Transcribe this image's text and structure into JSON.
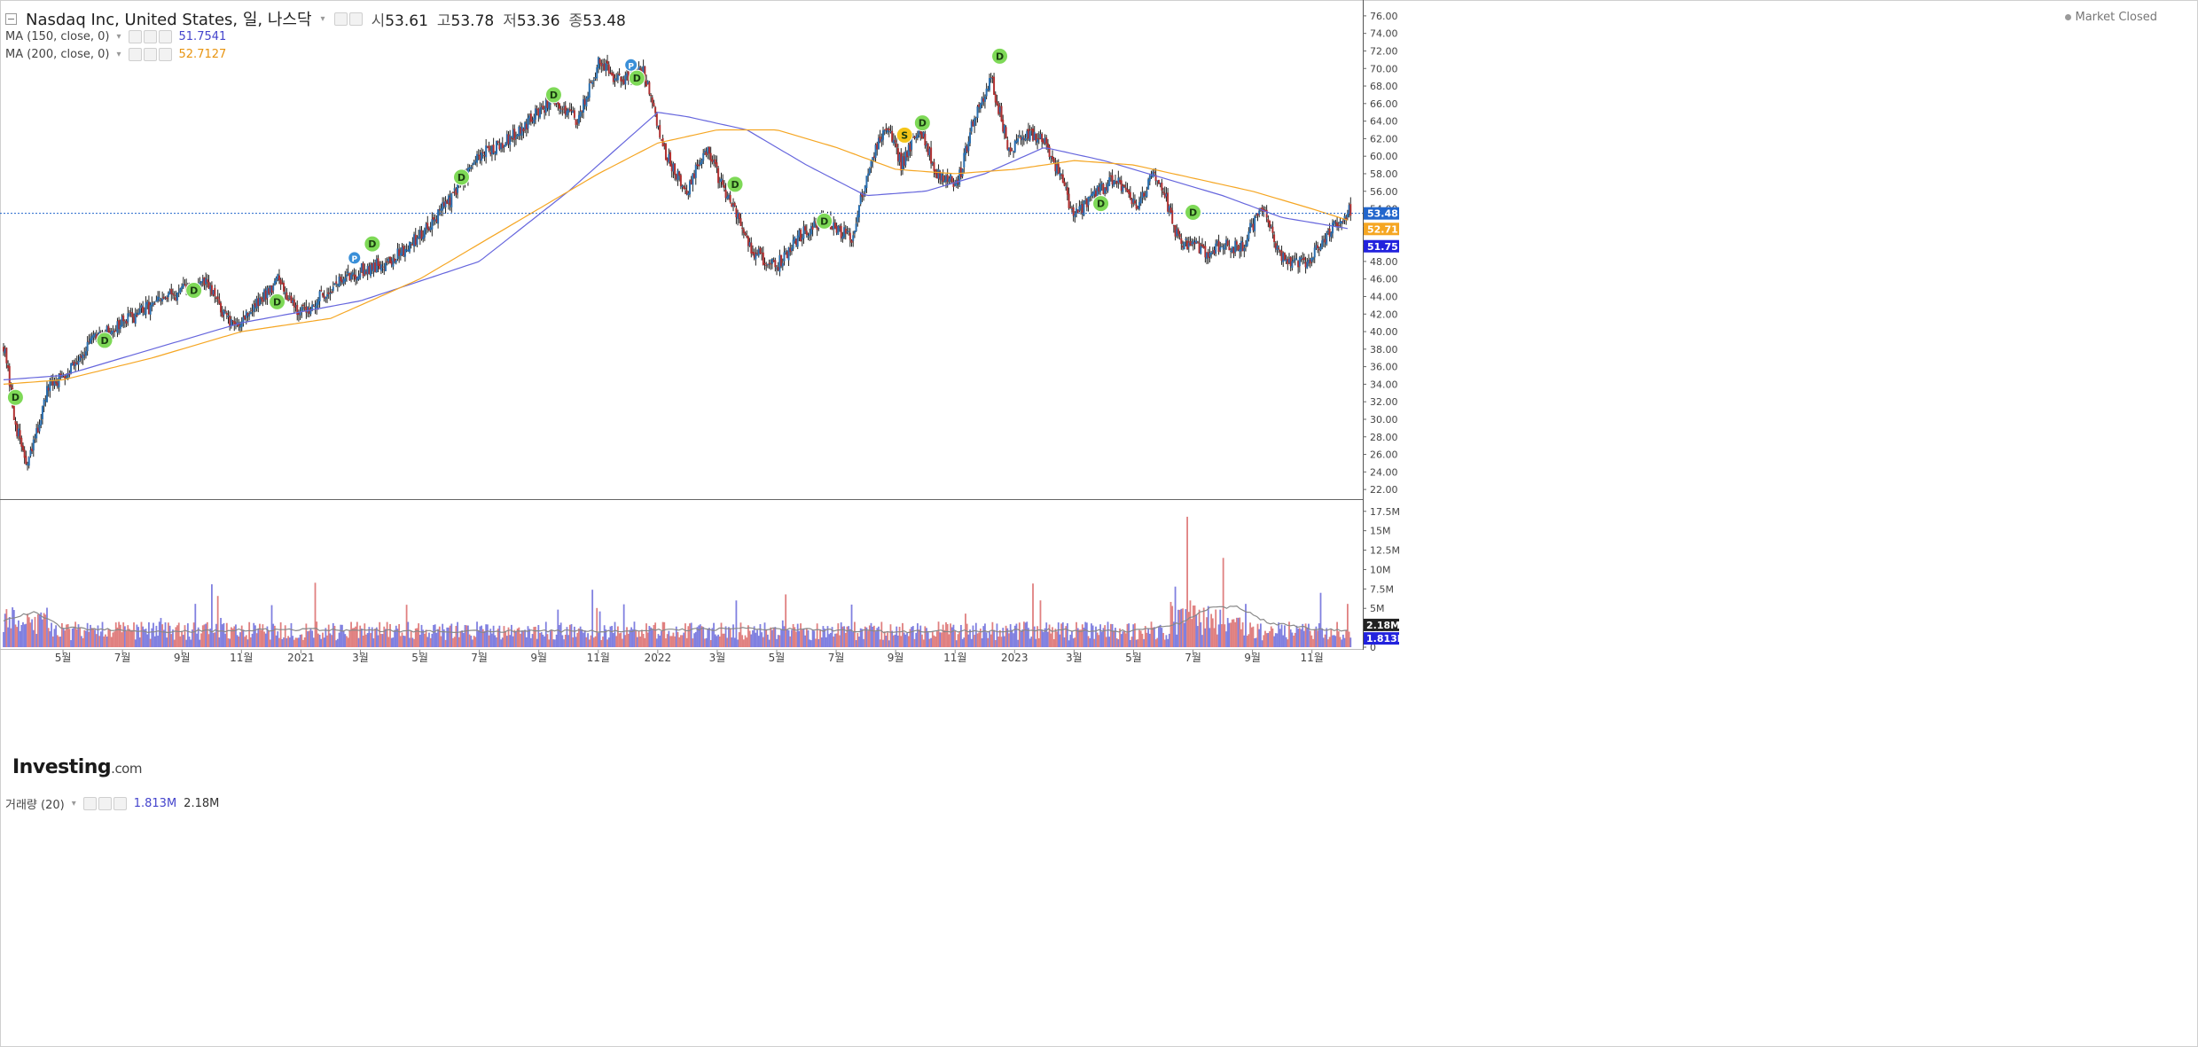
{
  "header": {
    "collapse_icon": "minus-square-icon",
    "title": "Nasdaq Inc, United States, 일, 나스닥",
    "dropdown_icon": "chevron-down-icon",
    "open_label": "시",
    "open_value": "53.61",
    "high_label": "고",
    "high_value": "53.78",
    "low_label": "저",
    "low_value": "53.36",
    "close_label": "종",
    "close_value": "53.48"
  },
  "market_status": "Market Closed",
  "indicators": {
    "ma150": {
      "label": "MA (150, close, 0)",
      "value": "51.7541",
      "color": "#6666dd"
    },
    "ma200": {
      "label": "MA (200, close, 0)",
      "value": "52.7127",
      "color": "#f5a623"
    }
  },
  "volume_panel": {
    "label": "거래량 (20)",
    "value1": "1.813M",
    "value2": "2.18M"
  },
  "logo": {
    "main": "Investing",
    "suffix": ".com"
  },
  "colors": {
    "up": "#2a6fb0",
    "down": "#b03030",
    "vol_up": "#8080e0",
    "vol_down": "#e08080",
    "ma150": "#6666dd",
    "ma200": "#f5a623",
    "last_price": "#2266cc"
  },
  "chart_data": {
    "type": "candlestick",
    "title": "Nasdaq Inc, United States, 일, 나스닥",
    "ylim": [
      21.0,
      77.0
    ],
    "y_ticks": [
      "22.00",
      "24.00",
      "26.00",
      "28.00",
      "30.00",
      "32.00",
      "34.00",
      "36.00",
      "38.00",
      "40.00",
      "42.00",
      "44.00",
      "46.00",
      "48.00",
      "50.00",
      "52.00",
      "54.00",
      "56.00",
      "58.00",
      "60.00",
      "62.00",
      "64.00",
      "66.00",
      "68.00",
      "70.00",
      "72.00",
      "74.00",
      "76.00"
    ],
    "x_labels": [
      "5월",
      "7월",
      "9월",
      "11월",
      "2021",
      "3월",
      "5월",
      "7월",
      "9월",
      "11월",
      "2022",
      "3월",
      "5월",
      "7월",
      "9월",
      "11월",
      "2023",
      "3월",
      "5월",
      "7월",
      "9월",
      "11월"
    ],
    "x_label_month_index": [
      2,
      4,
      6,
      8,
      10,
      12,
      14,
      16,
      18,
      20,
      22,
      24,
      26,
      28,
      30,
      32,
      34,
      36,
      38,
      40,
      42,
      44
    ],
    "months_span": 45.5,
    "price_path_month": [
      0,
      0.4,
      0.8,
      1.5,
      2,
      3,
      4,
      5,
      5.9,
      6.8,
      7.7,
      8.5,
      9.2,
      10,
      11.2,
      12,
      13,
      14,
      15,
      16,
      17,
      17.8,
      18.5,
      19.3,
      20,
      20.8,
      21.5,
      22,
      22.3,
      23,
      23.6,
      24.4,
      25.2,
      26,
      26.8,
      27.6,
      28.5,
      29.2,
      29.7,
      30.2,
      30.8,
      31.4,
      32.1,
      32.6,
      33.2,
      33.8,
      34.3,
      34.9,
      35.5,
      36,
      36.6,
      37.4,
      38.1,
      38.7,
      39.1,
      39.5,
      40.5,
      41,
      41.6,
      42.3,
      42.9,
      43.5,
      44,
      44.5,
      45.1,
      45.3
    ],
    "price_path_value": [
      38.5,
      29.5,
      24.5,
      33.5,
      35,
      39,
      41,
      43,
      44.5,
      45.5,
      40.5,
      43,
      46,
      42,
      45.5,
      47,
      48,
      51,
      55,
      60,
      62,
      64.5,
      66.5,
      64,
      70.5,
      68.5,
      70,
      63.5,
      60,
      56,
      61,
      55,
      49,
      47.5,
      51,
      53,
      50.5,
      60,
      63.5,
      59,
      63.5,
      58,
      57,
      64,
      69,
      61,
      62,
      62.5,
      58,
      53,
      55.5,
      57.5,
      54.5,
      58,
      55,
      50.5,
      49,
      50,
      49.5,
      54,
      49,
      47.5,
      48.5,
      51,
      53.48,
      53.78
    ],
    "ma150": {
      "label": "MA (150, close, 0)",
      "last": 51.7541,
      "path_month": [
        0,
        2,
        5,
        8,
        12,
        16,
        19,
        21,
        22,
        23,
        25,
        27,
        29,
        31,
        33,
        35,
        37,
        39,
        41,
        43,
        45.2
      ],
      "path_value": [
        34.5,
        35,
        38,
        41,
        43.5,
        48,
        56,
        62,
        65,
        64.5,
        63,
        59,
        55.5,
        56,
        58,
        61,
        59.5,
        57.5,
        55.5,
        53,
        51.75
      ]
    },
    "ma200": {
      "label": "MA (200, close, 0)",
      "last": 52.7127,
      "path_month": [
        0,
        2,
        5,
        8,
        11,
        14,
        17,
        20,
        22,
        24,
        26,
        28,
        30,
        32,
        34,
        36,
        38,
        40,
        42,
        44,
        45.2
      ],
      "path_value": [
        34.0,
        34.5,
        37,
        40,
        41.5,
        46,
        52,
        58,
        61.5,
        63,
        63,
        61,
        58.5,
        58,
        58.5,
        59.5,
        59,
        57.5,
        56,
        54,
        52.71
      ]
    },
    "last_price": 53.48,
    "axis_badges": [
      {
        "text": "53.48",
        "color": "#2266cc"
      },
      {
        "text": "52.71",
        "color": "#f5a623"
      },
      {
        "text": "51.75",
        "color": "#2222dd"
      }
    ],
    "events": [
      {
        "label": "D",
        "month": 0.4,
        "value": 32.5,
        "color": "#7ed957"
      },
      {
        "label": "D",
        "month": 3.4,
        "value": 39.0,
        "color": "#7ed957"
      },
      {
        "label": "D",
        "month": 6.4,
        "value": 44.7,
        "color": "#7ed957"
      },
      {
        "label": "D",
        "month": 9.2,
        "value": 43.4,
        "color": "#7ed957"
      },
      {
        "label": "P",
        "month": 11.8,
        "value": 48.4,
        "color": "#3a8fd8"
      },
      {
        "label": "D",
        "month": 12.4,
        "value": 50.0,
        "color": "#7ed957"
      },
      {
        "label": "D",
        "month": 15.4,
        "value": 57.6,
        "color": "#7ed957"
      },
      {
        "label": "D",
        "month": 18.5,
        "value": 67.0,
        "color": "#7ed957"
      },
      {
        "label": "P",
        "month": 21.1,
        "value": 70.4,
        "color": "#3a8fd8"
      },
      {
        "label": "D",
        "month": 21.3,
        "value": 68.9,
        "color": "#7ed957"
      },
      {
        "label": "D",
        "month": 24.6,
        "value": 56.8,
        "color": "#7ed957"
      },
      {
        "label": "D",
        "month": 27.6,
        "value": 52.6,
        "color": "#7ed957"
      },
      {
        "label": "S",
        "month": 30.3,
        "value": 62.4,
        "color": "#f5c518"
      },
      {
        "label": "D",
        "month": 30.9,
        "value": 63.8,
        "color": "#7ed957"
      },
      {
        "label": "D",
        "month": 33.5,
        "value": 71.4,
        "color": "#7ed957"
      },
      {
        "label": "D",
        "month": 36.9,
        "value": 54.6,
        "color": "#7ed957"
      },
      {
        "label": "D",
        "month": 40.0,
        "value": 53.6,
        "color": "#7ed957"
      }
    ],
    "volume": {
      "ylim": [
        0,
        18.5
      ],
      "y_ticks": [
        "0",
        "2.5M",
        "5M",
        "7.5M",
        "10M",
        "12.5M",
        "15M",
        "17.5M"
      ],
      "base_level_m": 2.2,
      "spikes": [
        {
          "month": 7.0,
          "value_m": 8.1
        },
        {
          "month": 10.5,
          "value_m": 8.3
        },
        {
          "month": 19.8,
          "value_m": 7.4
        },
        {
          "month": 26.3,
          "value_m": 6.8
        },
        {
          "month": 34.6,
          "value_m": 8.2
        },
        {
          "month": 39.4,
          "value_m": 7.8
        },
        {
          "month": 39.8,
          "value_m": 16.8
        },
        {
          "month": 41.0,
          "value_m": 11.5
        },
        {
          "month": 44.3,
          "value_m": 7.0
        }
      ],
      "ma20_path_month": [
        0,
        1,
        2,
        5,
        10,
        15,
        20,
        25,
        30,
        35,
        38,
        39.5,
        40.5,
        41.5,
        42.5,
        44,
        45.2
      ],
      "ma20_path_value": [
        3.5,
        4.5,
        2.5,
        2.0,
        2.3,
        2.0,
        2.1,
        2.4,
        2.0,
        2.2,
        2.1,
        3.0,
        5.0,
        5.2,
        3.2,
        2.4,
        2.18
      ],
      "last_ma": "2.18M",
      "last_vol": "1.813M"
    }
  }
}
